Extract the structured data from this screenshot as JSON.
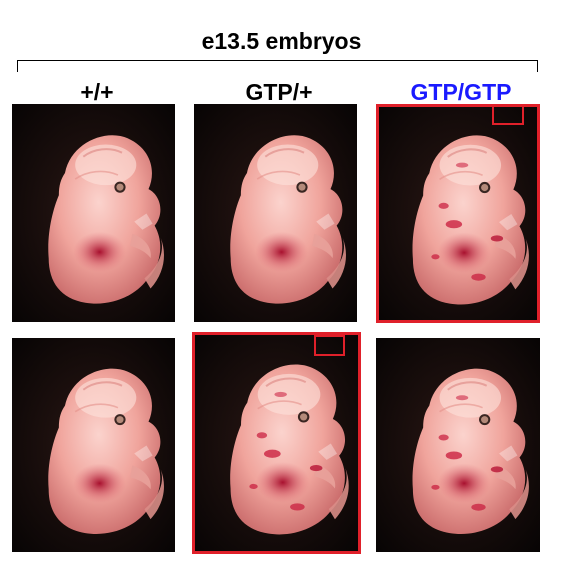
{
  "figure": {
    "title": "e13.5 embryos",
    "columns": [
      {
        "label": "+/+",
        "color": "#000000"
      },
      {
        "label": "GTP/+",
        "color": "#000000"
      },
      {
        "label": "GTP/GTP",
        "color": "#1a1aff"
      }
    ]
  },
  "colors": {
    "highlight": "#e0202a",
    "background": "#0e0807",
    "embryo_skin": "#f2a7a0",
    "liver": "#b2163c",
    "hemorrhage": "#c8183a"
  },
  "panels": [
    {
      "row": 1,
      "col": 1,
      "name": "panel-wt-top",
      "highlighted": false,
      "hemorrhage": false
    },
    {
      "row": 1,
      "col": 2,
      "name": "panel-het-top",
      "highlighted": false,
      "hemorrhage": false
    },
    {
      "row": 1,
      "col": 3,
      "name": "panel-hom-top",
      "highlighted": true,
      "hemorrhage": true
    },
    {
      "row": 2,
      "col": 1,
      "name": "panel-wt-bottom",
      "highlighted": false,
      "hemorrhage": false
    },
    {
      "row": 2,
      "col": 2,
      "name": "panel-het-bottom",
      "highlighted": true,
      "hemorrhage": true
    },
    {
      "row": 2,
      "col": 3,
      "name": "panel-hom-bottom",
      "highlighted": false,
      "hemorrhage": true
    }
  ]
}
